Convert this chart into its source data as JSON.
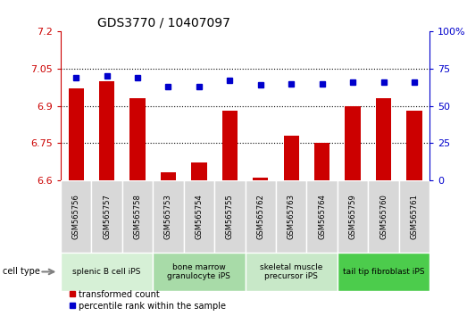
{
  "title": "GDS3770 / 10407097",
  "samples": [
    "GSM565756",
    "GSM565757",
    "GSM565758",
    "GSM565753",
    "GSM565754",
    "GSM565755",
    "GSM565762",
    "GSM565763",
    "GSM565764",
    "GSM565759",
    "GSM565760",
    "GSM565761"
  ],
  "red_values": [
    6.97,
    7.0,
    6.93,
    6.63,
    6.67,
    6.88,
    6.61,
    6.78,
    6.75,
    6.9,
    6.93,
    6.88
  ],
  "blue_values": [
    69,
    70,
    69,
    63,
    63,
    67,
    64,
    65,
    65,
    66,
    66,
    66
  ],
  "ylim_left": [
    6.6,
    7.2
  ],
  "ylim_right": [
    0,
    100
  ],
  "yticks_left": [
    6.6,
    6.75,
    6.9,
    7.05,
    7.2
  ],
  "yticks_right": [
    0,
    25,
    50,
    75,
    100
  ],
  "ytick_labels_left": [
    "6.6",
    "6.75",
    "6.9",
    "7.05",
    "7.2"
  ],
  "ytick_labels_right": [
    "0",
    "25",
    "50",
    "75",
    "100%"
  ],
  "hlines": [
    6.75,
    6.9,
    7.05
  ],
  "cell_type_groups": [
    {
      "label": "splenic B cell iPS",
      "start": 0,
      "end": 3,
      "color": "#d6f0d6"
    },
    {
      "label": "bone marrow\ngranulocyte iPS",
      "start": 3,
      "end": 6,
      "color": "#a8dba8"
    },
    {
      "label": "skeletal muscle\nprecursor iPS",
      "start": 6,
      "end": 9,
      "color": "#c8e8c8"
    },
    {
      "label": "tail tip fibroblast iPS",
      "start": 9,
      "end": 12,
      "color": "#4ccc4c"
    }
  ],
  "red_color": "#cc0000",
  "blue_color": "#0000cc",
  "bar_width": 0.5,
  "legend_red": "transformed count",
  "legend_blue": "percentile rank within the sample",
  "cell_type_label": "cell type"
}
